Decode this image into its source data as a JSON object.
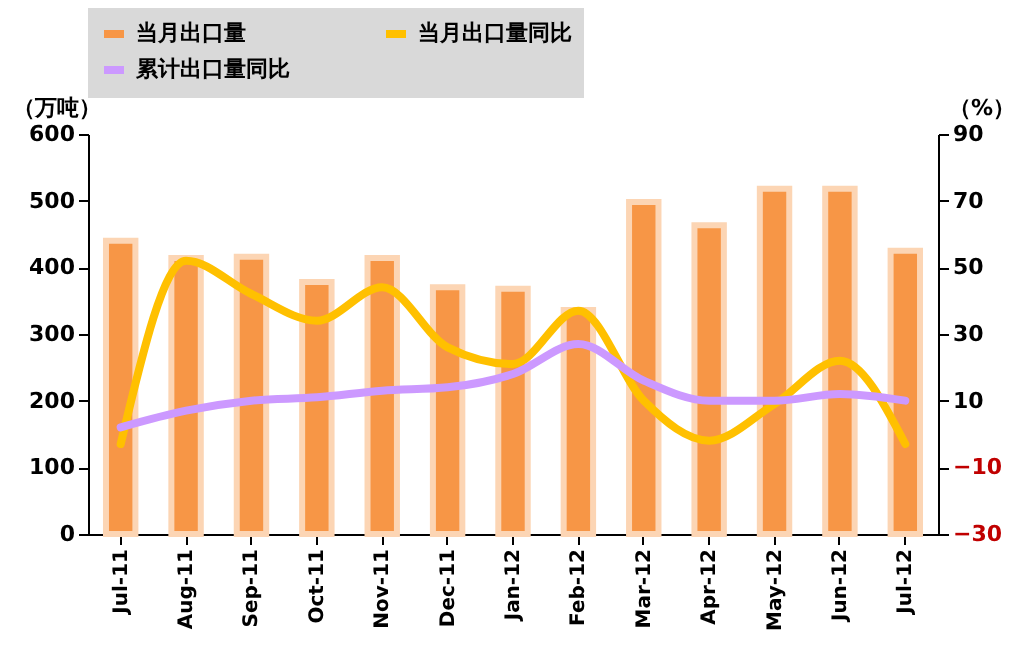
{
  "chart_data": {
    "type": "bar",
    "categories": [
      "Jul-11",
      "Aug-11",
      "Sep-11",
      "Oct-11",
      "Nov-11",
      "Dec-11",
      "Jan-12",
      "Feb-12",
      "Mar-12",
      "Apr-12",
      "May-12",
      "Jun-12",
      "Jul-12"
    ],
    "ylabel": "（万吨）",
    "y2label": "（%）",
    "ylim": [
      0,
      600
    ],
    "yticks": [
      0,
      100,
      200,
      300,
      400,
      500,
      600
    ],
    "y2lim": [
      -30,
      90
    ],
    "y2ticks": [
      -30,
      -10,
      10,
      30,
      50,
      70,
      90
    ],
    "legend": "top",
    "grid": false,
    "series": [
      {
        "name": "当月出口量",
        "color": "#f79646",
        "values": [
          440,
          414,
          416,
          378,
          414,
          370,
          368,
          336,
          498,
          463,
          518,
          518,
          425
        ]
      },
      {
        "name": "当月出口量同比",
        "type": "line",
        "axis": "y2",
        "color": "#ffc000",
        "values": [
          -3,
          52,
          42,
          34,
          44,
          26,
          21,
          37,
          10,
          -2,
          9,
          22,
          -3
        ]
      },
      {
        "name": "累计出口量同比",
        "type": "line",
        "axis": "y2",
        "color": "#cc99ff",
        "values": [
          2,
          7,
          10,
          11,
          13,
          14,
          18,
          27,
          16,
          10,
          10,
          12,
          10
        ]
      }
    ]
  }
}
